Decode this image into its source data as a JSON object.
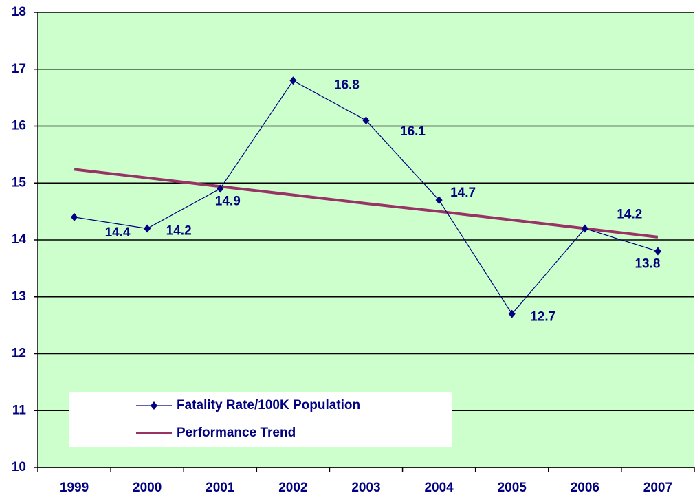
{
  "chart_data": {
    "type": "line",
    "categories": [
      "1999",
      "2000",
      "2001",
      "2002",
      "2003",
      "2004",
      "2005",
      "2006",
      "2007"
    ],
    "series": [
      {
        "name": "Fatality Rate/100K Population",
        "color": "#000080",
        "marker": "diamond",
        "data_labels": true,
        "values": [
          14.4,
          14.2,
          14.9,
          16.8,
          16.1,
          14.7,
          12.7,
          14.2,
          13.8
        ]
      },
      {
        "name": "Performance Trend",
        "color": "#993366",
        "marker": "none",
        "data_labels": false,
        "values": [
          15.24,
          15.09,
          14.94,
          14.79,
          14.64,
          14.5,
          14.35,
          14.2,
          14.05
        ]
      }
    ],
    "ylim": [
      10,
      18
    ],
    "yticks": [
      10,
      11,
      12,
      13,
      14,
      15,
      16,
      17,
      18
    ],
    "grid": true,
    "background": "#ccffcc",
    "legend": "lower left"
  }
}
